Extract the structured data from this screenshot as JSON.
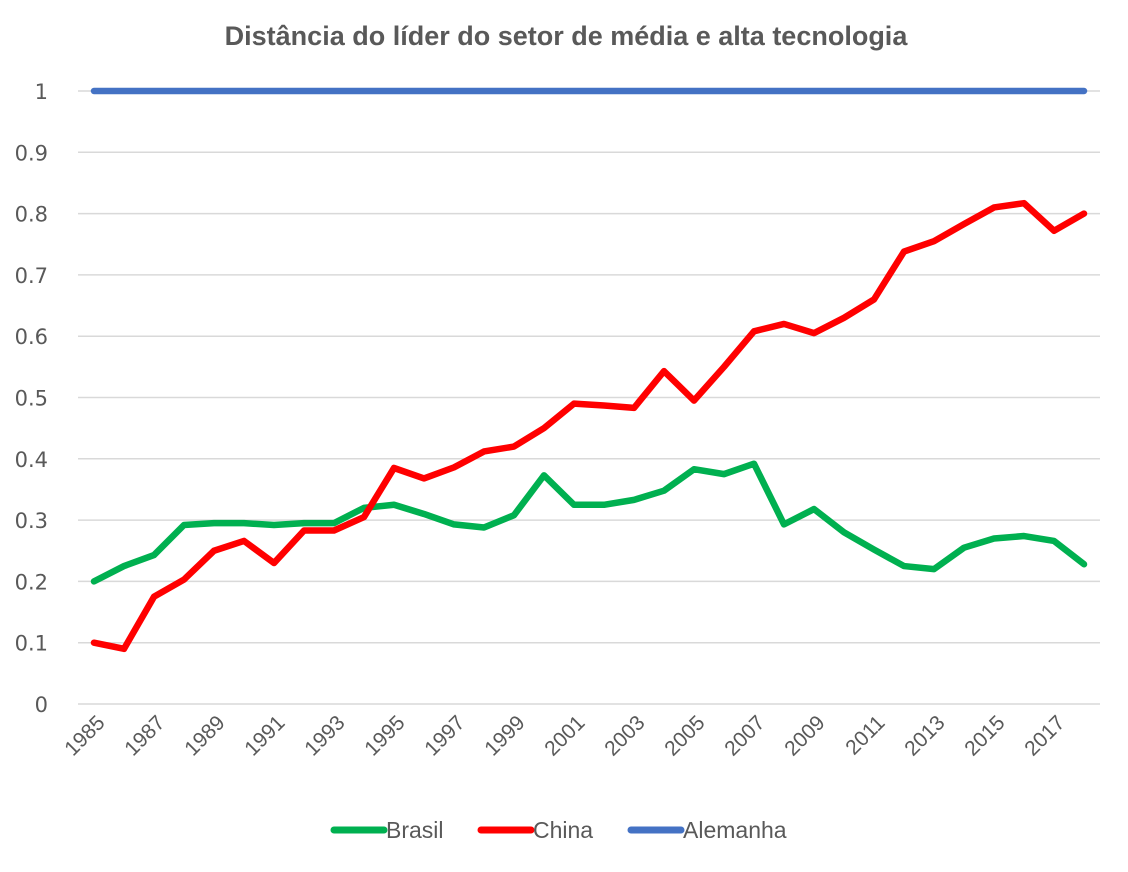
{
  "chart_data": {
    "type": "line",
    "title": "Distância do líder do setor de média e alta tecnologia",
    "xlabel": "",
    "ylabel": "",
    "ylim": [
      0,
      1
    ],
    "yticks": [
      "0",
      "0.1",
      "0.2",
      "0.3",
      "0.4",
      "0.5",
      "0.6",
      "0.7",
      "0.8",
      "0.9",
      "1"
    ],
    "grid": true,
    "legend": "bottom",
    "x": [
      1985,
      1986,
      1987,
      1988,
      1989,
      1990,
      1991,
      1992,
      1993,
      1994,
      1995,
      1996,
      1997,
      1998,
      1999,
      2000,
      2001,
      2002,
      2003,
      2004,
      2005,
      2006,
      2007,
      2008,
      2009,
      2010,
      2011,
      2012,
      2013,
      2014,
      2015,
      2016,
      2017,
      2018
    ],
    "xtick_labels": [
      "1985",
      "1987",
      "1989",
      "1991",
      "1993",
      "1995",
      "1997",
      "1999",
      "2001",
      "2003",
      "2005",
      "2007",
      "2009",
      "2011",
      "2013",
      "2015",
      "2017"
    ],
    "series": [
      {
        "name": "Brasil",
        "color": "#00b050",
        "values": [
          0.2,
          0.225,
          0.243,
          0.292,
          0.295,
          0.295,
          0.292,
          0.295,
          0.295,
          0.32,
          0.325,
          0.31,
          0.293,
          0.288,
          0.308,
          0.373,
          0.325,
          0.325,
          0.333,
          0.348,
          0.383,
          0.375,
          0.392,
          0.293,
          0.318,
          0.28,
          0.252,
          0.225,
          0.22,
          0.255,
          0.27,
          0.274,
          0.266,
          0.228
        ]
      },
      {
        "name": "China",
        "color": "#ff0000",
        "values": [
          0.1,
          0.09,
          0.175,
          0.203,
          0.25,
          0.266,
          0.23,
          0.283,
          0.283,
          0.305,
          0.385,
          0.368,
          0.386,
          0.412,
          0.42,
          0.45,
          0.49,
          0.487,
          0.483,
          0.543,
          0.495,
          0.55,
          0.608,
          0.62,
          0.605,
          0.63,
          0.66,
          0.738,
          0.755,
          0.783,
          0.81,
          0.817,
          0.772,
          0.8
        ]
      },
      {
        "name": "Alemanha",
        "color": "#4472c4",
        "values": [
          1,
          1,
          1,
          1,
          1,
          1,
          1,
          1,
          1,
          1,
          1,
          1,
          1,
          1,
          1,
          1,
          1,
          1,
          1,
          1,
          1,
          1,
          1,
          1,
          1,
          1,
          1,
          1,
          1,
          1,
          1,
          1,
          1,
          1
        ]
      }
    ]
  }
}
